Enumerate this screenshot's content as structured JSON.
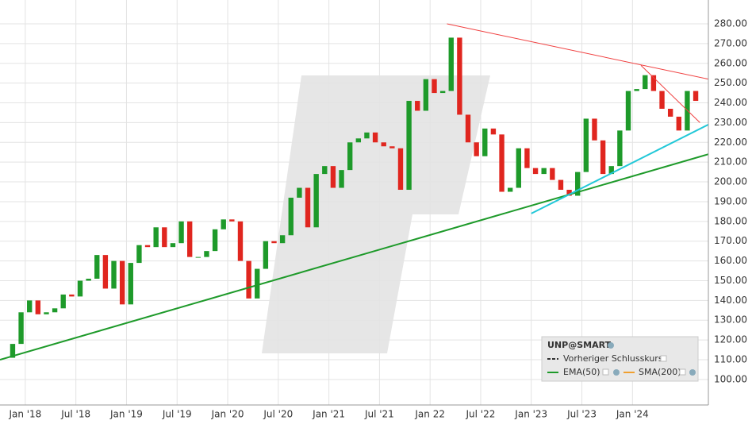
{
  "chart_data": {
    "type": "candlestick",
    "x": [
      "2017-11",
      "2017-12",
      "2018-01",
      "2018-02",
      "2018-03",
      "2018-04",
      "2018-05",
      "2018-06",
      "2018-07",
      "2018-08",
      "2018-09",
      "2018-10",
      "2018-11",
      "2018-12",
      "2019-01",
      "2019-02",
      "2019-03",
      "2019-04",
      "2019-05",
      "2019-06",
      "2019-07",
      "2019-08",
      "2019-09",
      "2019-10",
      "2019-11",
      "2019-12",
      "2020-01",
      "2020-02",
      "2020-03",
      "2020-04",
      "2020-05",
      "2020-06",
      "2020-07",
      "2020-08",
      "2020-09",
      "2020-10",
      "2020-11",
      "2020-12",
      "2021-01",
      "2021-02",
      "2021-03",
      "2021-04",
      "2021-05",
      "2021-06",
      "2021-07",
      "2021-08",
      "2021-09",
      "2021-10",
      "2021-11",
      "2021-12",
      "2022-01",
      "2022-02",
      "2022-03",
      "2022-04",
      "2022-05",
      "2022-06",
      "2022-07",
      "2022-08",
      "2022-09",
      "2022-10",
      "2022-11",
      "2022-12",
      "2023-01",
      "2023-02",
      "2023-03",
      "2023-04",
      "2023-05",
      "2023-06",
      "2023-07",
      "2023-08",
      "2023-09",
      "2023-10",
      "2023-11",
      "2023-12",
      "2024-01",
      "2024-02",
      "2024-03",
      "2024-04",
      "2024-05",
      "2024-06",
      "2024-07",
      "2024-08"
    ],
    "open": [
      111,
      118,
      134,
      140,
      133,
      134,
      136,
      143,
      142,
      150,
      151,
      163,
      146,
      160,
      138,
      159,
      168,
      167,
      177,
      167,
      169,
      180,
      162,
      162,
      165,
      176,
      181,
      180,
      160,
      141,
      156,
      170,
      169,
      173,
      192,
      197,
      177,
      204,
      208,
      197,
      206,
      220,
      222,
      225,
      220,
      218,
      217,
      196,
      241,
      236,
      252,
      245,
      246,
      273,
      234,
      220,
      213,
      227,
      224,
      195,
      197,
      217,
      207,
      204,
      207,
      201,
      196,
      193,
      205,
      232,
      221,
      204,
      208,
      226,
      246,
      247,
      254,
      246,
      237,
      233,
      226,
      246
    ],
    "close": [
      118,
      134,
      140,
      133,
      134,
      136,
      143,
      142,
      150,
      151,
      163,
      146,
      160,
      138,
      159,
      168,
      167,
      177,
      167,
      169,
      180,
      162,
      162,
      165,
      176,
      181,
      180,
      160,
      141,
      156,
      170,
      169,
      173,
      192,
      197,
      177,
      204,
      208,
      197,
      206,
      220,
      222,
      225,
      220,
      218,
      217,
      196,
      241,
      236,
      252,
      245,
      246,
      273,
      234,
      220,
      213,
      227,
      224,
      195,
      197,
      217,
      207,
      204,
      207,
      201,
      196,
      193,
      205,
      232,
      221,
      204,
      208,
      226,
      246,
      247,
      254,
      246,
      237,
      233,
      226,
      246,
      241
    ],
    "up_color": "#1e9a2a",
    "down_color": "#e0261f",
    "xlim": [
      "2017-10",
      "2024-10"
    ],
    "xticks": [
      {
        "value": "2018-01",
        "label": "Jan '18"
      },
      {
        "value": "2018-07",
        "label": "Jul '18"
      },
      {
        "value": "2019-01",
        "label": "Jan '19"
      },
      {
        "value": "2019-07",
        "label": "Jul '19"
      },
      {
        "value": "2020-01",
        "label": "Jan '20"
      },
      {
        "value": "2020-07",
        "label": "Jul '20"
      },
      {
        "value": "2021-01",
        "label": "Jan '21"
      },
      {
        "value": "2021-07",
        "label": "Jul '21"
      },
      {
        "value": "2022-01",
        "label": "Jan 22"
      },
      {
        "value": "2022-07",
        "label": "Jul '22"
      },
      {
        "value": "2023-01",
        "label": "Jan '23"
      },
      {
        "value": "2023-07",
        "label": "Jul '23"
      },
      {
        "value": "2024-01",
        "label": "Jan '24"
      }
    ],
    "ylim": [
      87.1,
      292.05
    ],
    "yticks": [
      {
        "value": 100,
        "label": "100.00"
      },
      {
        "value": 110,
        "label": "110.00"
      },
      {
        "value": 120,
        "label": "120.00"
      },
      {
        "value": 130,
        "label": "130.00"
      },
      {
        "value": 140,
        "label": "140.00"
      },
      {
        "value": 150,
        "label": "150.00"
      },
      {
        "value": 160,
        "label": "160.00"
      },
      {
        "value": 170,
        "label": "170.00"
      },
      {
        "value": 180,
        "label": "180.00"
      },
      {
        "value": 190,
        "label": "190.00"
      },
      {
        "value": 200,
        "label": "200.00"
      },
      {
        "value": 210,
        "label": "210.00"
      },
      {
        "value": 220,
        "label": "220.00"
      },
      {
        "value": 230,
        "label": "230.00"
      },
      {
        "value": 240,
        "label": "240.00"
      },
      {
        "value": 250,
        "label": "250.00"
      },
      {
        "value": 260,
        "label": "260.00"
      },
      {
        "value": 270,
        "label": "270.00"
      },
      {
        "value": 280,
        "label": "280.00"
      }
    ],
    "grid": true,
    "trendlines": [
      {
        "color": "#1e9a2a",
        "x": [
          "2017-10",
          "2024-10"
        ],
        "y": [
          110,
          214
        ]
      },
      {
        "color": "#f04040",
        "x": [
          "2022-03",
          "2024-10"
        ],
        "y": [
          280,
          252
        ]
      },
      {
        "color": "#f04040",
        "x": [
          "2024-02",
          "2024-09"
        ],
        "y": [
          259,
          230
        ]
      },
      {
        "color": "#22c8d8",
        "x": [
          "2023-01",
          "2024-10"
        ],
        "y": [
          184,
          229
        ]
      }
    ],
    "legend": {
      "title": "UNP@SMART",
      "items": [
        {
          "name": "Vorheriger Schlusskurs",
          "color": "#333333"
        },
        {
          "name": "EMA(50)",
          "color": "#1e9a2a"
        },
        {
          "name": "SMA(200)",
          "color": "#f0a030"
        }
      ]
    }
  }
}
